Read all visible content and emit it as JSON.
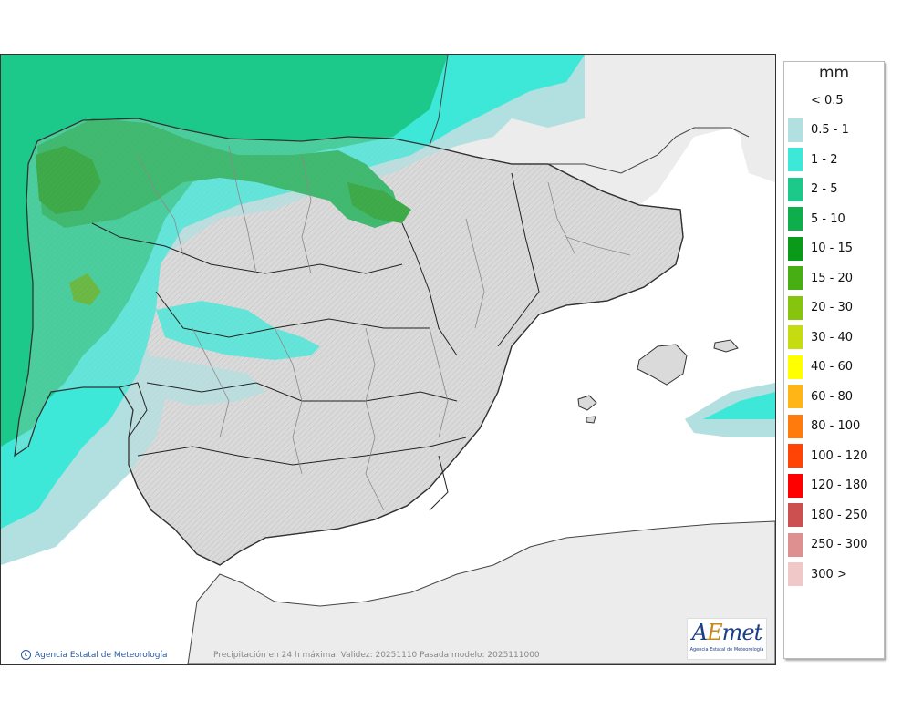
{
  "map": {
    "title_caption": "Precipitación en 24 h máxima. Validez: 20251110 Pasada modelo: 2025111000",
    "credit": "Agencia Estatal de Meteorología",
    "logo_word_a": "A",
    "logo_word_e": "E",
    "logo_word_rest": "met",
    "logo_sub": "Agencia Estatal de Meteorología",
    "colors": {
      "sea": "#ffffff",
      "land_outside": "#ececec",
      "land_dry": "#d9d9d9"
    }
  },
  "legend": {
    "unit": "mm",
    "items": [
      {
        "label": "< 0.5",
        "color": "#ffffff"
      },
      {
        "label": "0.5 - 1",
        "color": "#b2dfe0"
      },
      {
        "label": "1 - 2",
        "color": "#3ee8d8"
      },
      {
        "label": "2 - 5",
        "color": "#1dc98a"
      },
      {
        "label": "5 - 10",
        "color": "#0fae4c"
      },
      {
        "label": "10 - 15",
        "color": "#0a9a1a"
      },
      {
        "label": "15 - 20",
        "color": "#47ae14"
      },
      {
        "label": "20 - 30",
        "color": "#86c40e"
      },
      {
        "label": "30 - 40",
        "color": "#c4dc10"
      },
      {
        "label": "40 - 60",
        "color": "#ffff00"
      },
      {
        "label": "60 - 80",
        "color": "#ffb516"
      },
      {
        "label": "80 - 100",
        "color": "#ff7c0c"
      },
      {
        "label": "100 - 120",
        "color": "#ff4406"
      },
      {
        "label": "120 - 180",
        "color": "#ff0000"
      },
      {
        "label": "180 - 250",
        "color": "#cc5050"
      },
      {
        "label": "250 - 300",
        "color": "#de9090"
      },
      {
        "label": "300 >",
        "color": "#f0c8c8"
      }
    ]
  }
}
